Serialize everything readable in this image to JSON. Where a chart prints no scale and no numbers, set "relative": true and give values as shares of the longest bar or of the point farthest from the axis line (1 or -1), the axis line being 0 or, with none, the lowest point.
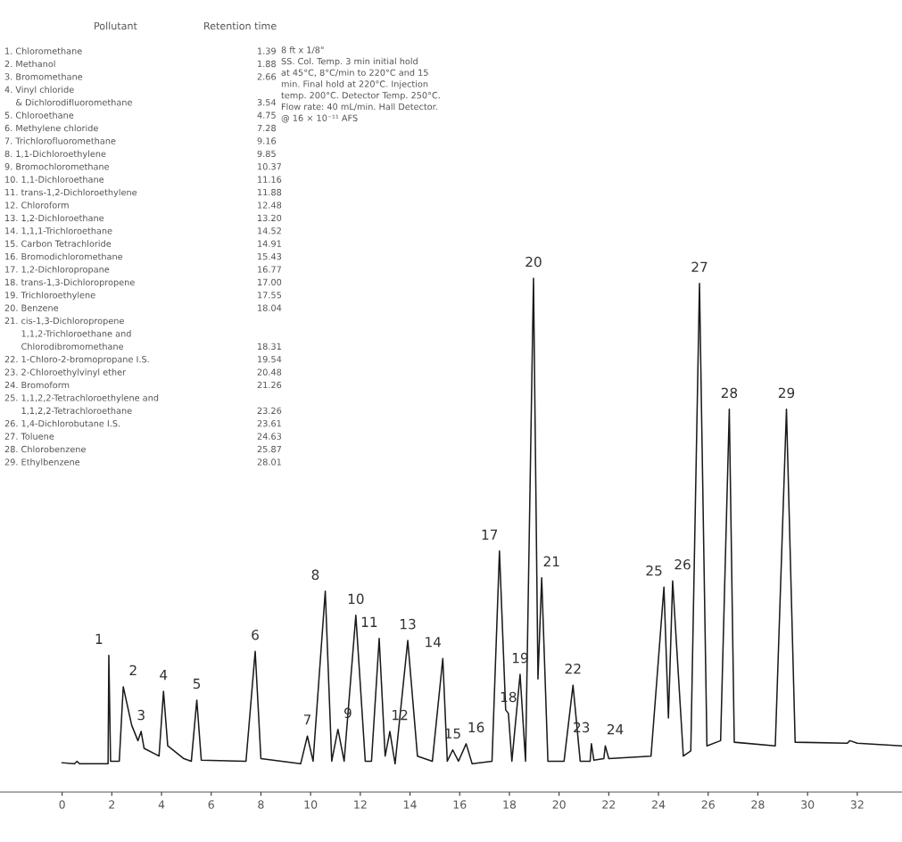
{
  "chart_data": {
    "type": "line",
    "relative": true,
    "color": "#1a1a1a",
    "line_style": "solid",
    "grid": false,
    "tick_labels": "x",
    "xlim": [
      -2.5,
      33.8
    ],
    "xticks": [
      0,
      2,
      4,
      6,
      8,
      10,
      12,
      14,
      16,
      18,
      20,
      22,
      24,
      26,
      28,
      30,
      32
    ],
    "x": [
      0,
      0.5,
      0.6,
      0.7,
      1.85,
      1.88,
      1.95,
      2.3,
      2.46,
      2.8,
      3.05,
      3.18,
      3.3,
      3.9,
      4.08,
      4.25,
      4.9,
      5.2,
      5.42,
      5.6,
      7.4,
      7.77,
      8.0,
      9.6,
      9.87,
      10.1,
      10.59,
      10.85,
      11.1,
      11.35,
      11.82,
      12.2,
      12.45,
      12.76,
      13.0,
      13.19,
      13.4,
      13.91,
      14.3,
      14.9,
      15.32,
      15.5,
      15.72,
      15.95,
      16.26,
      16.5,
      17.3,
      17.6,
      17.85,
      17.96,
      18.1,
      18.43,
      18.65,
      18.97,
      19.15,
      19.3,
      19.55,
      20.2,
      20.56,
      20.85,
      21.25,
      21.3,
      21.4,
      21.8,
      21.86,
      22.0,
      23.7,
      24.22,
      24.4,
      24.57,
      25.0,
      25.3,
      25.65,
      25.95,
      26.5,
      26.85,
      27.05,
      28.7,
      29.15,
      29.5,
      31.6,
      31.7,
      32.0,
      33.8
    ],
    "values": [
      0.057,
      0.055,
      0.06,
      0.055,
      0.055,
      0.266,
      0.06,
      0.06,
      0.205,
      0.13,
      0.1,
      0.118,
      0.085,
      0.07,
      0.196,
      0.09,
      0.065,
      0.06,
      0.179,
      0.062,
      0.06,
      0.274,
      0.065,
      0.055,
      0.109,
      0.06,
      0.391,
      0.06,
      0.122,
      0.06,
      0.344,
      0.06,
      0.06,
      0.299,
      0.07,
      0.118,
      0.055,
      0.295,
      0.07,
      0.06,
      0.26,
      0.06,
      0.082,
      0.06,
      0.094,
      0.055,
      0.06,
      0.469,
      0.16,
      0.153,
      0.06,
      0.229,
      0.06,
      1.0,
      0.22,
      0.417,
      0.06,
      0.06,
      0.208,
      0.06,
      0.06,
      0.094,
      0.062,
      0.065,
      0.09,
      0.065,
      0.07,
      0.399,
      0.144,
      0.411,
      0.07,
      0.08,
      0.99,
      0.09,
      0.1,
      0.745,
      0.097,
      0.09,
      0.745,
      0.097,
      0.095,
      0.1,
      0.095,
      0.09
    ],
    "annotations": [
      {
        "text": "1",
        "x": 1.88,
        "y": 0.266
      },
      {
        "text": "2",
        "x": 2.46,
        "y": 0.205
      },
      {
        "text": "3",
        "x": 3.18,
        "y": 0.118
      },
      {
        "text": "4",
        "x": 4.08,
        "y": 0.196
      },
      {
        "text": "5",
        "x": 5.42,
        "y": 0.179
      },
      {
        "text": "6",
        "x": 7.77,
        "y": 0.274
      },
      {
        "text": "7",
        "x": 9.87,
        "y": 0.109
      },
      {
        "text": "8",
        "x": 10.59,
        "y": 0.391
      },
      {
        "text": "9",
        "x": 11.1,
        "y": 0.122
      },
      {
        "text": "10",
        "x": 11.82,
        "y": 0.344
      },
      {
        "text": "11",
        "x": 12.76,
        "y": 0.299
      },
      {
        "text": "12",
        "x": 13.19,
        "y": 0.118
      },
      {
        "text": "13",
        "x": 13.91,
        "y": 0.295
      },
      {
        "text": "14",
        "x": 15.32,
        "y": 0.26
      },
      {
        "text": "15",
        "x": 15.72,
        "y": 0.082
      },
      {
        "text": "16",
        "x": 16.26,
        "y": 0.094
      },
      {
        "text": "17",
        "x": 17.6,
        "y": 0.469
      },
      {
        "text": "18",
        "x": 17.96,
        "y": 0.153
      },
      {
        "text": "19",
        "x": 18.43,
        "y": 0.229
      },
      {
        "text": "20",
        "x": 18.97,
        "y": 1.0
      },
      {
        "text": "21",
        "x": 19.3,
        "y": 0.417
      },
      {
        "text": "22",
        "x": 20.56,
        "y": 0.208
      },
      {
        "text": "23",
        "x": 21.3,
        "y": 0.094
      },
      {
        "text": "24",
        "x": 21.86,
        "y": 0.09
      },
      {
        "text": "25",
        "x": 24.22,
        "y": 0.399
      },
      {
        "text": "26",
        "x": 24.57,
        "y": 0.411
      },
      {
        "text": "27",
        "x": 25.65,
        "y": 0.99
      },
      {
        "text": "28",
        "x": 26.85,
        "y": 0.745
      },
      {
        "text": "29",
        "x": 29.15,
        "y": 0.745
      },
      "Pollutant\tRetention time",
      "1. Chloromethane\t1.39",
      "2. Methanol\t1.88",
      "3. Bromomethane\t2.66",
      "4. Vinyl chloride\n    & Dichlorodifluoromethane\t3.54",
      "5. Chloroethane\t4.75",
      "6. Methylene chloride\t7.28",
      "7. Trichlorofluoromethane\t9.16",
      "8. 1,1-Dichloroethylene\t9.85",
      "9. Bromochloromethane\t10.37",
      "10. 1,1-Dichloroethane\t11.16",
      "11. trans-1,2-Dichloroethylene\t11.88",
      "12. Chloroform\t12.48",
      "13. 1,2-Dichloroethane\t13.20",
      "14. 1,1,1-Trichloroethane\t14.52",
      "15. Carbon Tetrachloride\t14.91",
      "16. Bromodichloromethane\t15.43",
      "17. 1,2-Dichloropropane\t16.77",
      "18. trans-1,3-Dichloropropene\t17.00",
      "19. Trichloroethylene\t17.55",
      "20. Benzene\t18.04",
      "21. cis-1,3-Dichloropropene\n      1,1,2-Trichloroethane and\n      Chlorodibromomethane\t18.31",
      "22. 1-Chloro-2-bromopropane I.S.\t19.54",
      "23. 2-Chloroethylvinyl ether\t20.48",
      "24. Bromoform\t21.26",
      "25. 1,1,2,2-Tetrachloroethylene and\n      1,1,2,2-Tetrachloroethane\t23.26",
      "26. 1,4-Dichlorobutane I.S.\t23.61",
      "27. Toluene\t24.63",
      "28. Chlorobenzene\t25.87",
      "29. Ethylbenzene\t28.01",
      "8 ft x 1/8\"\nSS. Col. Temp. 3 min initial hold\nat 45°C, 8°C/min to 220°C and 15\nmin. Final hold at 220°C. Injection\ntemp. 200°C. Detector Temp. 250°C.\nFlow rate: 40 mL/min. Hall Detector.\n@ 16 × 10⁻¹¹ AFS"
    ]
  }
}
